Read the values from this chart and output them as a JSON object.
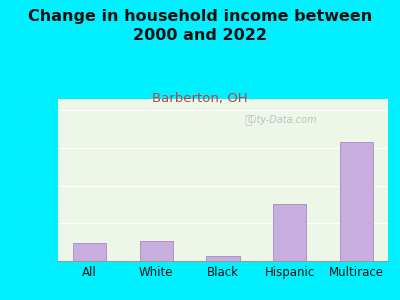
{
  "title": "Change in household income between\n2000 and 2022",
  "subtitle": "Barberton, OH",
  "categories": [
    "All",
    "White",
    "Black",
    "Hispanic",
    "Multirace"
  ],
  "values": [
    48,
    52,
    12,
    150,
    315
  ],
  "bar_color": "#c8aede",
  "bar_edge_color": "#b090cc",
  "title_fontsize": 11.5,
  "title_color": "#111111",
  "subtitle_fontsize": 9.5,
  "subtitle_color": "#c04040",
  "tick_fontsize": 8.5,
  "ytick_color": "#00eeff",
  "ylabel_ticks": [
    0,
    100,
    200,
    300,
    400
  ],
  "ylim": [
    0,
    430
  ],
  "background_outer": "#00f0ff",
  "background_inner": "#edf7e8",
  "grid_color": "#ffffff",
  "watermark": "City-Data.com"
}
